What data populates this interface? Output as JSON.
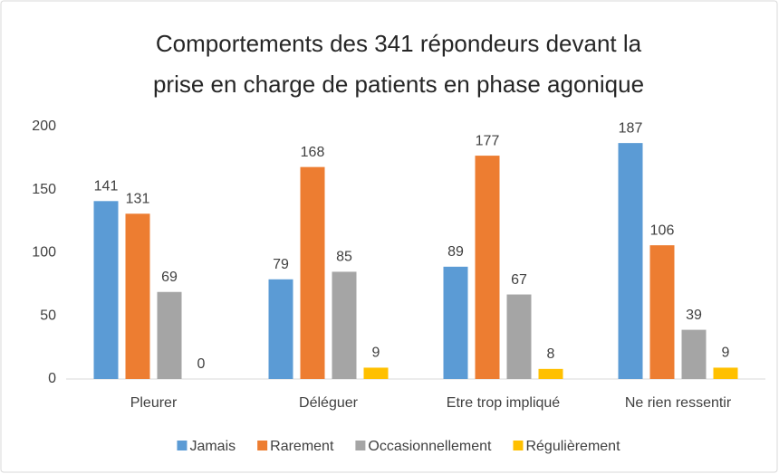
{
  "chart_data": {
    "type": "bar",
    "title": [
      "Comportements des 341 répondeurs devant la",
      "prise en charge de patients en phase agonique"
    ],
    "categories": [
      "Pleurer",
      "Déléguer",
      "Etre trop impliqué",
      "Ne rien ressentir"
    ],
    "series": [
      {
        "name": "Jamais",
        "color": "#5b9bd5",
        "values": [
          141,
          79,
          89,
          187
        ]
      },
      {
        "name": "Rarement",
        "color": "#ed7d31",
        "values": [
          131,
          168,
          177,
          106
        ]
      },
      {
        "name": "Occasionnellement",
        "color": "#a5a5a5",
        "values": [
          69,
          85,
          67,
          39
        ]
      },
      {
        "name": "Régulièrement",
        "color": "#ffc000",
        "values": [
          0,
          9,
          8,
          9
        ]
      }
    ],
    "ylim": [
      0,
      200
    ],
    "yticks": [
      0,
      50,
      100,
      150,
      200
    ],
    "grid": false,
    "legend": "bottom"
  }
}
